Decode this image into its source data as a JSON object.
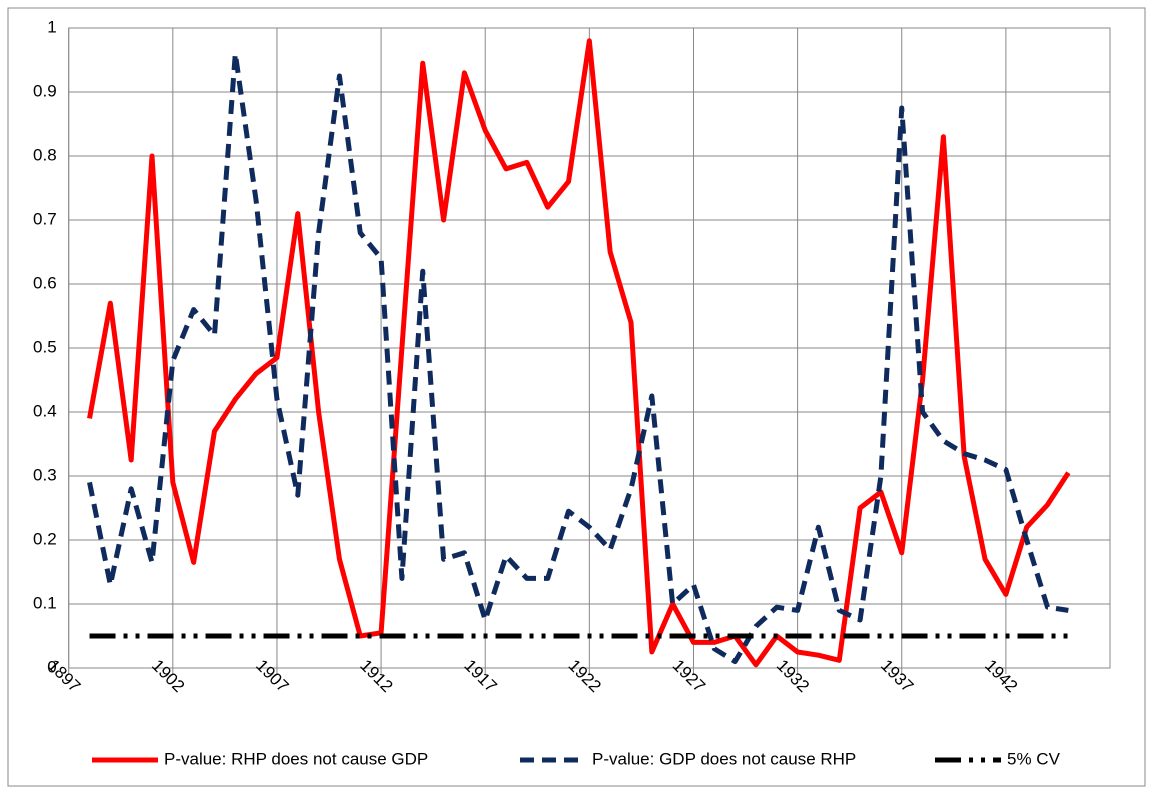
{
  "chart_data": {
    "type": "line",
    "x": [
      1898,
      1899,
      1900,
      1901,
      1902,
      1903,
      1904,
      1905,
      1906,
      1907,
      1908,
      1909,
      1910,
      1911,
      1912,
      1913,
      1914,
      1915,
      1916,
      1917,
      1918,
      1919,
      1920,
      1921,
      1922,
      1923,
      1924,
      1925,
      1926,
      1927,
      1928,
      1929,
      1930,
      1931,
      1932,
      1933,
      1934,
      1935,
      1936,
      1937,
      1938,
      1939,
      1940,
      1941,
      1942,
      1943,
      1944,
      1945
    ],
    "series": [
      {
        "name": "P-value: RHP does not cause GDP",
        "color": "#ff0000",
        "dash": "solid",
        "values": [
          0.39,
          0.57,
          0.325,
          0.8,
          0.29,
          0.165,
          0.37,
          0.42,
          0.46,
          0.485,
          0.71,
          0.4,
          0.17,
          0.05,
          0.055,
          0.5,
          0.945,
          0.7,
          0.93,
          0.84,
          0.78,
          0.79,
          0.72,
          0.76,
          0.98,
          0.65,
          0.54,
          0.025,
          0.1,
          0.04,
          0.04,
          0.05,
          0.005,
          0.05,
          0.025,
          0.02,
          0.012,
          0.25,
          0.275,
          0.18,
          0.45,
          0.83,
          0.33,
          0.17,
          0.115,
          0.22,
          0.255,
          0.305
        ]
      },
      {
        "name": "P-value: GDP does not cause RHP",
        "color": "#0f2a5c",
        "dash": "dash",
        "values": [
          0.29,
          0.13,
          0.28,
          0.165,
          0.48,
          0.56,
          0.52,
          0.96,
          0.73,
          0.42,
          0.27,
          0.68,
          0.925,
          0.68,
          0.64,
          0.14,
          0.62,
          0.17,
          0.18,
          0.075,
          0.175,
          0.14,
          0.14,
          0.245,
          0.22,
          0.185,
          0.28,
          0.425,
          0.1,
          0.13,
          0.03,
          0.01,
          0.065,
          0.095,
          0.09,
          0.22,
          0.09,
          0.075,
          0.3,
          0.875,
          0.4,
          0.355,
          0.335,
          0.325,
          0.31,
          0.2,
          0.095,
          0.09
        ]
      },
      {
        "name": "5% CV",
        "color": "#000000",
        "dash": "dashdotdot",
        "values": [
          0.05,
          0.05,
          0.05,
          0.05,
          0.05,
          0.05,
          0.05,
          0.05,
          0.05,
          0.05,
          0.05,
          0.05,
          0.05,
          0.05,
          0.05,
          0.05,
          0.05,
          0.05,
          0.05,
          0.05,
          0.05,
          0.05,
          0.05,
          0.05,
          0.05,
          0.05,
          0.05,
          0.05,
          0.05,
          0.05,
          0.05,
          0.05,
          0.05,
          0.05,
          0.05,
          0.05,
          0.05,
          0.05,
          0.05,
          0.05,
          0.05,
          0.05,
          0.05,
          0.05,
          0.05,
          0.05,
          0.05,
          0.05
        ]
      }
    ],
    "xlim": [
      1897,
      1947
    ],
    "xticks": [
      1897,
      1902,
      1907,
      1912,
      1917,
      1922,
      1927,
      1932,
      1937,
      1942
    ],
    "ylim": [
      0,
      1
    ],
    "yticks": [
      0,
      0.1,
      0.2,
      0.3,
      0.4,
      0.5,
      0.6,
      0.7,
      0.8,
      0.9,
      1
    ],
    "grid": true,
    "legend": "bottom"
  }
}
